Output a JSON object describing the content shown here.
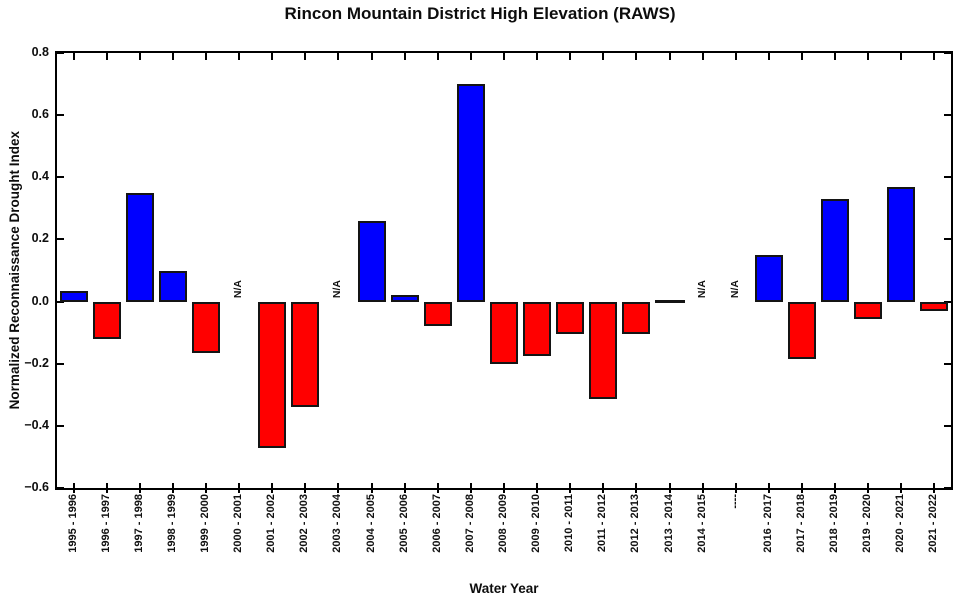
{
  "chart_data": {
    "type": "bar",
    "title": "Rincon Mountain District High Elevation (RAWS)",
    "xlabel": "Water Year",
    "ylabel": "Normalized Reconnaissance Drought Index",
    "ylim": [
      -0.6,
      0.8
    ],
    "grid": false,
    "legend": "none",
    "frame": "full-box with inward tick marks",
    "na_label": "N/A",
    "na_categories": [
      "2000 - 2001",
      "2003 - 2004",
      "2014 - 2015",
      "2015 - 2016 (tick shown as dashes)"
    ],
    "colors": {
      "positive": "#0000ff",
      "negative": "#ff0000",
      "outline": "#141414",
      "text": "#0d0d0d",
      "background": "#ffffff"
    },
    "ytick_values": [
      0.8,
      0.6,
      0.4,
      0.2,
      0.0,
      -0.2,
      -0.4,
      -0.6
    ],
    "ytick_labels": [
      "0.8",
      "0.6",
      "0.4",
      "0.2",
      "0.0",
      "−0.2",
      "−0.4",
      "−0.6"
    ],
    "categories": [
      "1995 - 1996",
      "1996 - 1997",
      "1997 - 1998",
      "1998 - 1999",
      "1999 - 2000",
      "2000 - 2001",
      "2001 - 2002",
      "2002 - 2003",
      "2003 - 2004",
      "2004 - 2005",
      "2005 - 2006",
      "2006 - 2007",
      "2007 - 2008",
      "2008 - 2009",
      "2009 - 2010",
      "2010 - 2011",
      "2011 - 2012",
      "2012 - 2013",
      "2013 - 2014",
      "2014 - 2015",
      "----",
      "2016 - 2017",
      "2017 - 2018",
      "2018 - 2019",
      "2019 - 2020",
      "2020 - 2021",
      "2021 - 2022"
    ],
    "values": [
      0.035,
      -0.12,
      0.35,
      0.1,
      -0.165,
      null,
      -0.47,
      -0.34,
      null,
      0.26,
      0.02,
      -0.08,
      0.7,
      -0.2,
      -0.175,
      -0.105,
      -0.315,
      -0.105,
      0.0,
      null,
      null,
      0.15,
      -0.185,
      0.33,
      -0.055,
      0.37,
      -0.03
    ]
  }
}
